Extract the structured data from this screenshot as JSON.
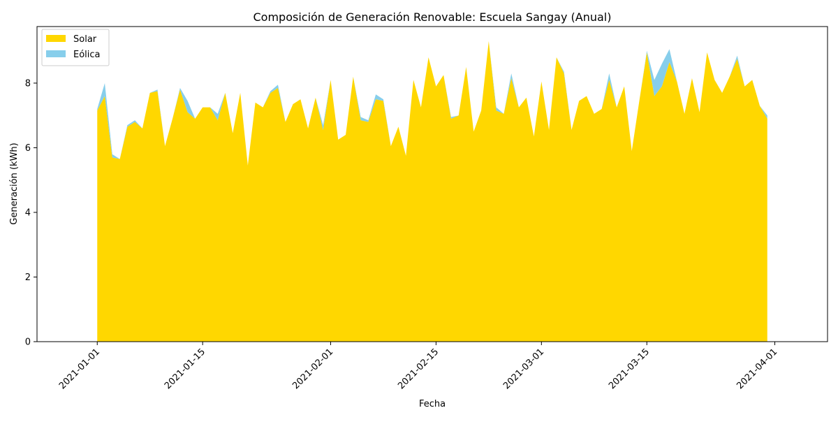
{
  "chart_data": {
    "type": "area",
    "stacked": true,
    "title": "Composición de Generación Renovable: Escuela Sangay (Anual)",
    "xlabel": "Fecha",
    "ylabel": "Generación (kWh)",
    "x_start": "2021-01-01",
    "x_end": "2021-03-31",
    "xlim": [
      "2020-12-24",
      "2021-04-08"
    ],
    "ylim": [
      0,
      9.75
    ],
    "x_ticks": [
      "2021-01-01",
      "2021-01-15",
      "2021-02-01",
      "2021-02-15",
      "2021-03-01",
      "2021-03-15",
      "2021-04-01"
    ],
    "y_ticks": [
      0,
      2,
      4,
      6,
      8
    ],
    "grid": false,
    "legend_position": "upper-left",
    "series": [
      {
        "name": "Solar",
        "color": "#FFD700",
        "values": [
          7.15,
          7.6,
          5.7,
          5.65,
          6.65,
          6.8,
          6.6,
          7.7,
          7.75,
          6.05,
          6.9,
          7.8,
          7.1,
          6.9,
          7.25,
          7.25,
          6.85,
          7.7,
          6.45,
          7.7,
          5.45,
          7.4,
          7.25,
          7.7,
          7.85,
          6.8,
          7.35,
          7.5,
          6.6,
          7.55,
          6.55,
          8.1,
          6.25,
          6.4,
          8.2,
          6.85,
          6.8,
          7.5,
          7.45,
          6.05,
          6.65,
          5.75,
          8.1,
          7.25,
          8.8,
          7.9,
          8.25,
          6.9,
          7.0,
          8.5,
          6.5,
          7.15,
          9.3,
          7.15,
          7.05,
          8.15,
          7.25,
          7.55,
          6.35,
          8.05,
          6.55,
          8.8,
          8.3,
          6.55,
          7.45,
          7.6,
          7.05,
          7.2,
          8.1,
          7.25,
          7.9,
          5.9,
          7.45,
          8.95,
          7.6,
          7.9,
          8.65,
          8.05,
          7.05,
          8.15,
          7.1,
          8.95,
          8.1,
          7.7,
          8.2,
          8.75,
          7.9,
          8.1,
          7.3,
          6.9
        ],
        "fill_order": 1
      },
      {
        "name": "Eólica",
        "color": "#87CEEB",
        "values": [
          0.05,
          0.4,
          0.1,
          0.0,
          0.05,
          0.05,
          0.0,
          0.0,
          0.05,
          0.0,
          0.0,
          0.05,
          0.35,
          0.0,
          0.0,
          0.0,
          0.2,
          0.0,
          0.0,
          0.0,
          0.0,
          0.0,
          0.0,
          0.05,
          0.1,
          0.0,
          0.0,
          0.0,
          0.0,
          0.0,
          0.15,
          0.0,
          0.0,
          0.0,
          0.0,
          0.1,
          0.05,
          0.15,
          0.05,
          0.0,
          0.0,
          0.0,
          0.0,
          0.0,
          0.0,
          0.0,
          0.0,
          0.05,
          0.0,
          0.0,
          0.0,
          0.0,
          0.0,
          0.1,
          0.0,
          0.15,
          0.0,
          0.0,
          0.0,
          0.0,
          0.0,
          0.0,
          0.05,
          0.0,
          0.0,
          0.0,
          0.0,
          0.0,
          0.2,
          0.0,
          0.0,
          0.0,
          0.0,
          0.05,
          0.5,
          0.7,
          0.4,
          0.0,
          0.0,
          0.0,
          0.0,
          0.0,
          0.0,
          0.0,
          0.0,
          0.1,
          0.0,
          0.0,
          0.0,
          0.1
        ],
        "fill_order": 2
      }
    ]
  }
}
